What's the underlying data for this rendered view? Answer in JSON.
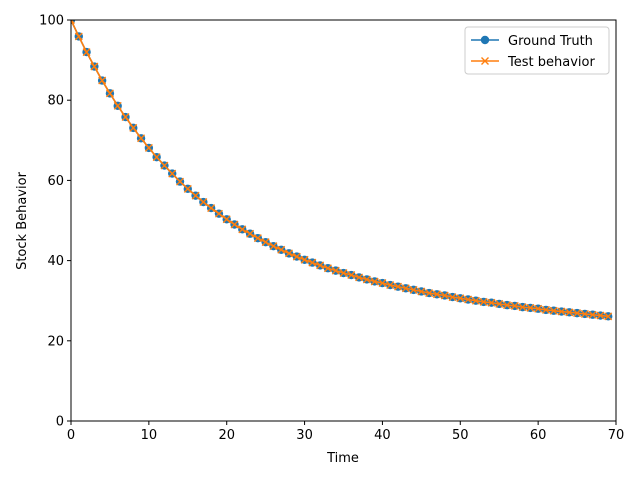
{
  "chart_data": {
    "type": "line",
    "title": "",
    "xlabel": "Time",
    "ylabel": "Stock Behavior",
    "xlim": [
      0,
      70
    ],
    "ylim": [
      0,
      100
    ],
    "xticks": [
      0,
      10,
      20,
      30,
      40,
      50,
      60,
      70
    ],
    "yticks": [
      0,
      20,
      40,
      60,
      80,
      100
    ],
    "x_tick_labels": [
      "0",
      "10",
      "20",
      "30",
      "40",
      "50",
      "60",
      "70"
    ],
    "y_tick_labels": [
      "0",
      "20",
      "40",
      "60",
      "80",
      "100"
    ],
    "grid": false,
    "legend_position": "top-right",
    "x": [
      0,
      1,
      2,
      3,
      4,
      5,
      6,
      7,
      8,
      9,
      10,
      11,
      12,
      13,
      14,
      15,
      16,
      17,
      18,
      19,
      20,
      21,
      22,
      23,
      24,
      25,
      26,
      27,
      28,
      29,
      30,
      31,
      32,
      33,
      34,
      35,
      36,
      37,
      38,
      39,
      40,
      41,
      42,
      43,
      44,
      45,
      46,
      47,
      48,
      49,
      50,
      51,
      52,
      53,
      54,
      55,
      56,
      57,
      58,
      59,
      60,
      61,
      62,
      63,
      64,
      65,
      66,
      67,
      68,
      69
    ],
    "series": [
      {
        "name": "Ground Truth",
        "color": "#1f77b4",
        "marker": "circle",
        "values": [
          100.0,
          95.9,
          92.0,
          88.4,
          84.9,
          81.7,
          78.6,
          75.8,
          73.1,
          70.5,
          68.1,
          65.8,
          63.7,
          61.7,
          59.7,
          57.9,
          56.2,
          54.6,
          53.1,
          51.7,
          50.3,
          49.0,
          47.8,
          46.7,
          45.6,
          44.6,
          43.6,
          42.7,
          41.8,
          41.0,
          40.2,
          39.5,
          38.8,
          38.1,
          37.5,
          36.9,
          36.4,
          35.8,
          35.3,
          34.8,
          34.4,
          33.9,
          33.5,
          33.1,
          32.7,
          32.3,
          31.9,
          31.6,
          31.3,
          30.9,
          30.6,
          30.3,
          30.0,
          29.7,
          29.5,
          29.2,
          28.9,
          28.7,
          28.4,
          28.2,
          28.0,
          27.7,
          27.5,
          27.3,
          27.1,
          26.9,
          26.7,
          26.5,
          26.3,
          26.1
        ]
      },
      {
        "name": "Test behavior",
        "color": "#ff7f0e",
        "marker": "x",
        "values": [
          100.0,
          95.9,
          92.0,
          88.4,
          84.9,
          81.7,
          78.6,
          75.8,
          73.1,
          70.5,
          68.1,
          65.8,
          63.7,
          61.7,
          59.7,
          57.9,
          56.2,
          54.6,
          53.1,
          51.7,
          50.3,
          49.0,
          47.8,
          46.7,
          45.6,
          44.6,
          43.6,
          42.7,
          41.8,
          41.0,
          40.2,
          39.5,
          38.8,
          38.1,
          37.5,
          36.9,
          36.4,
          35.8,
          35.3,
          34.8,
          34.4,
          33.9,
          33.5,
          33.1,
          32.7,
          32.3,
          31.9,
          31.6,
          31.3,
          30.9,
          30.6,
          30.3,
          30.0,
          29.7,
          29.5,
          29.2,
          28.9,
          28.7,
          28.4,
          28.2,
          28.0,
          27.7,
          27.5,
          27.3,
          27.1,
          26.9,
          26.7,
          26.5,
          26.3,
          26.1
        ]
      }
    ]
  }
}
